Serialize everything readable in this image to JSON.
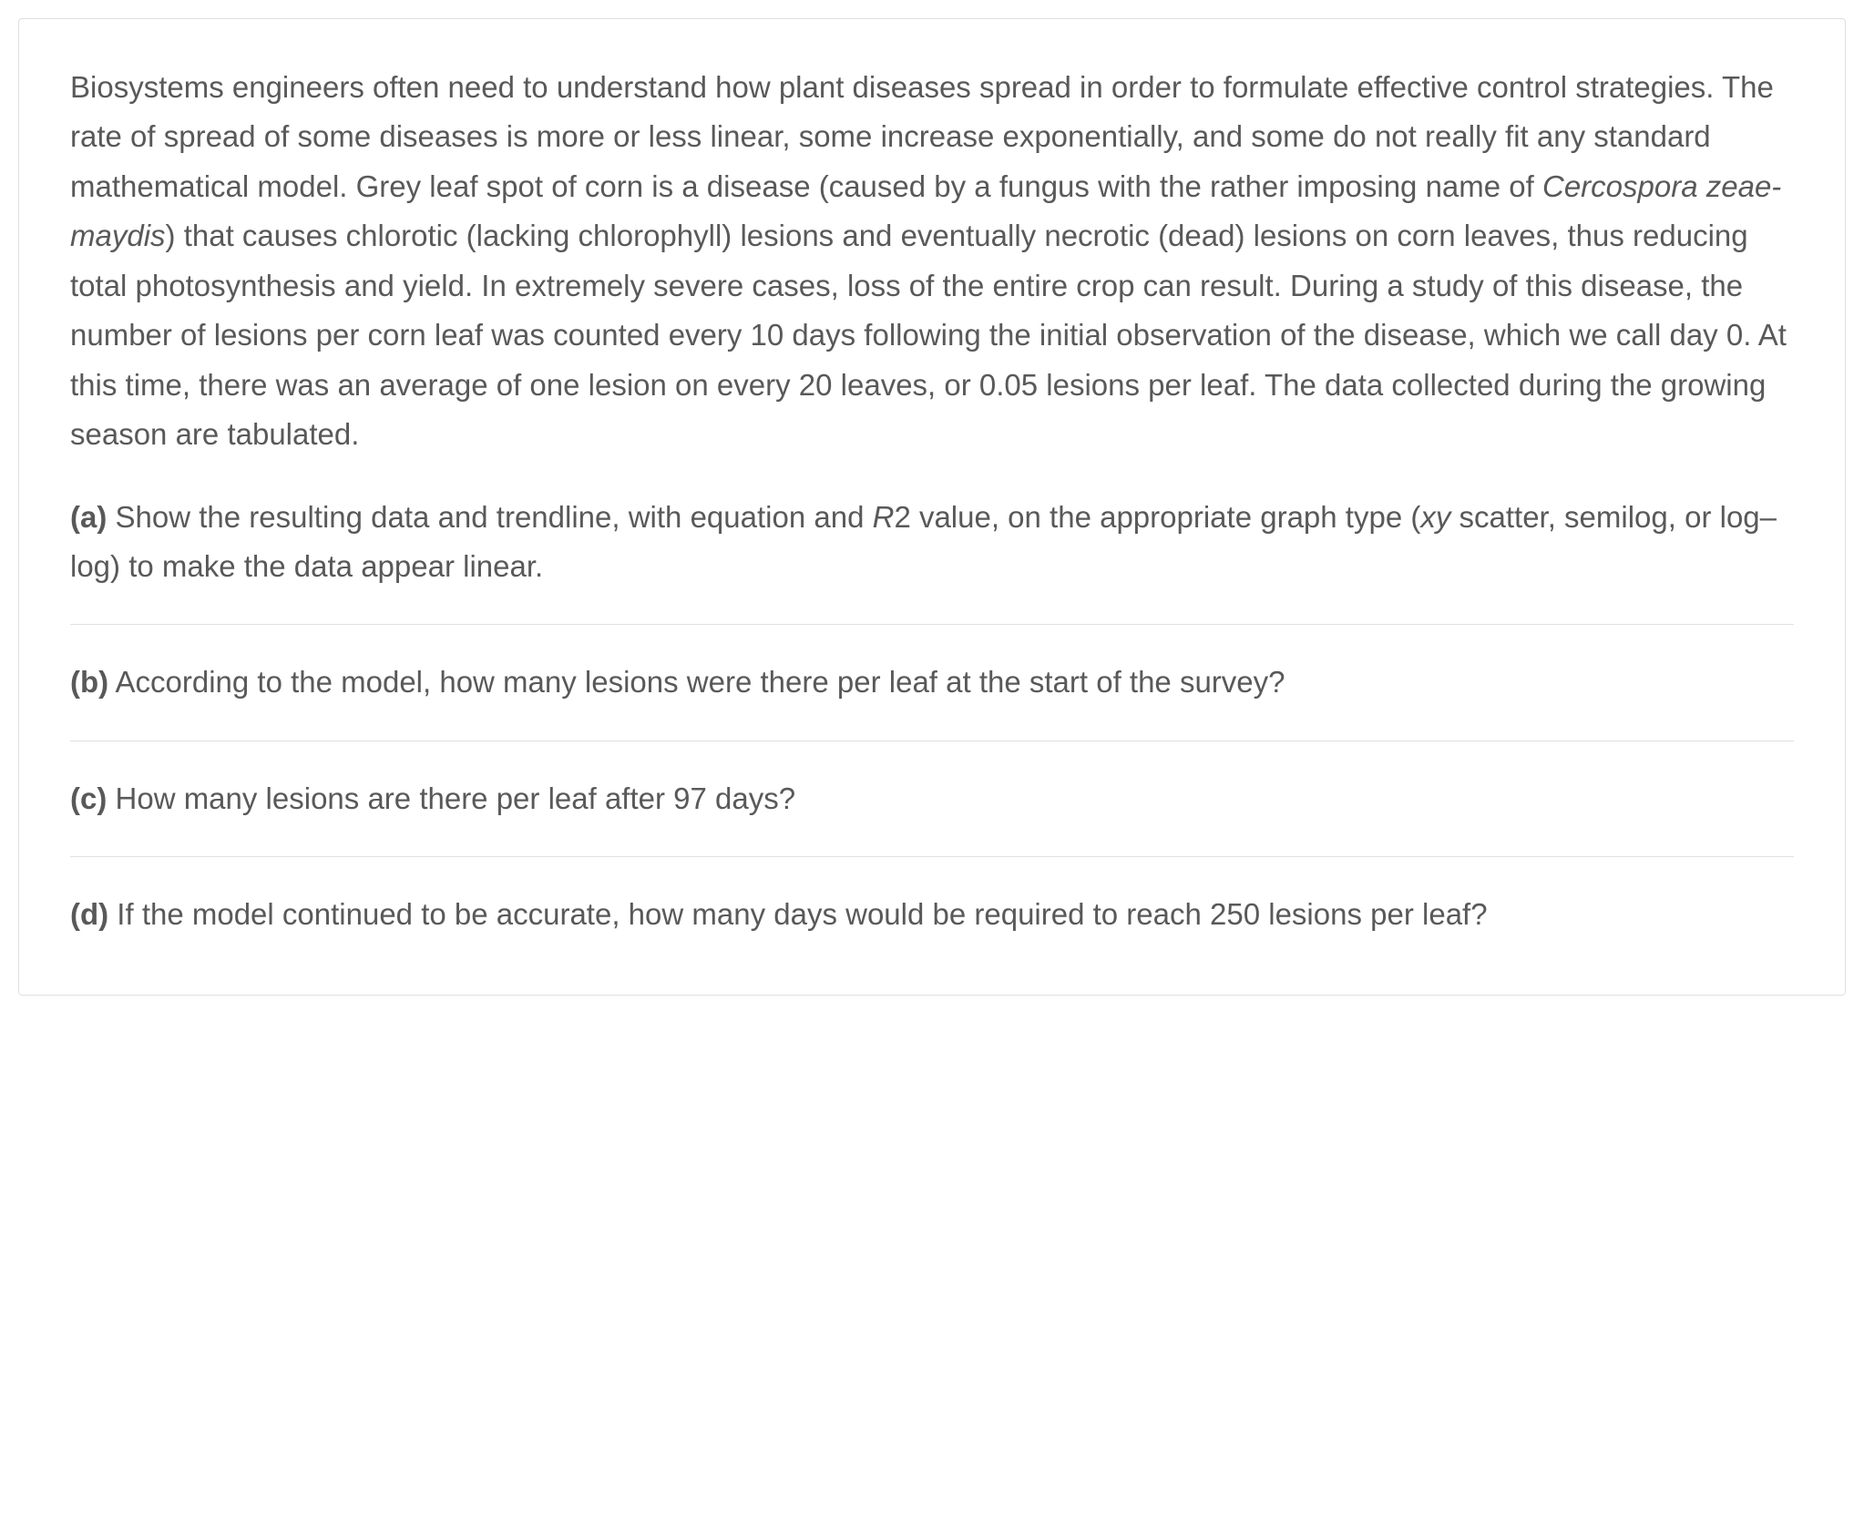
{
  "intro": {
    "text_part1": "Biosystems engineers often need to understand how plant diseases spread in order to formulate effective control strategies. The rate of spread of some diseases is more or less linear, some increase exponentially, and some do not really fit any standard mathematical model. Grey leaf spot of corn is a disease (caused by a fungus with the rather imposing name of ",
    "italic_text": "Cercospora zeae-maydis",
    "text_part2": ") that causes chlorotic (lacking chlorophyll) lesions and eventually necrotic (dead) lesions on corn leaves, thus reducing total photosynthesis and yield. In extremely severe cases, loss of the entire crop can result. During a study of this disease, the number of lesions per corn leaf was counted every 10 days following the initial observation of the disease, which we call day 0. At this time, there was an average of one lesion on every 20 leaves, or 0.05 lesions per leaf. The data collected during the growing season are tabulated."
  },
  "questions": {
    "a": {
      "label": "(a)",
      "text_part1": " Show the resulting data and trendline, with equation and ",
      "italic_text": "R",
      "text_part2": "2 value, on the appropriate graph type (",
      "italic_text2": "xy ",
      "text_part3": "scatter, semilog, or log–log) to make the data appear linear."
    },
    "b": {
      "label": "(b)",
      "text": " According to the model, how many lesions were there per leaf at the start of the survey?"
    },
    "c": {
      "label": "(c)",
      "text": " How many lesions are there per leaf after 97 days?"
    },
    "d": {
      "label": "(d)",
      "text": " If the model continued to be accurate, how many days would be required to reach 250 lesions per leaf?"
    }
  },
  "styling": {
    "text_color": "#595959",
    "border_color": "#e0e0e0",
    "background_color": "#ffffff",
    "font_size": 33,
    "line_height": 1.65
  }
}
